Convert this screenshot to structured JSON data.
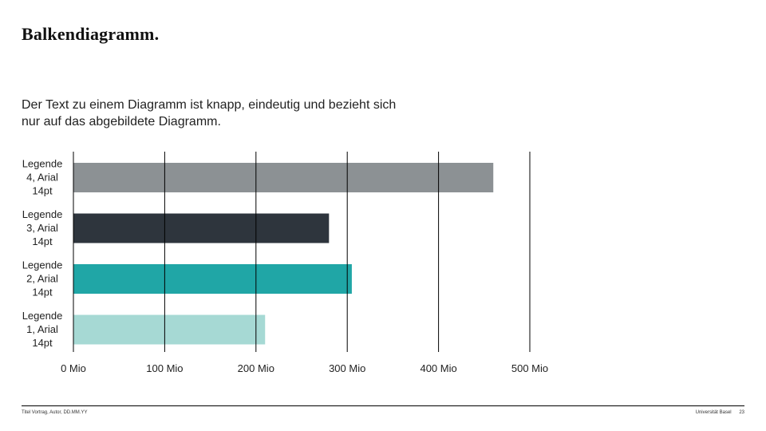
{
  "slide": {
    "title": "Balkendiagramm.",
    "intro_line1": "Der Text zu einem Diagramm ist knapp, eindeutig und bezieht sich",
    "intro_line2": "nur auf das abgebildete Diagramm."
  },
  "footer": {
    "left": "Titel Vortrag, Autor, DD.MM.YY",
    "institution": "Universität Basel",
    "page": "23"
  },
  "chart_data": {
    "type": "bar",
    "orientation": "horizontal",
    "categories": [
      [
        "Legende",
        "4, Arial",
        "14pt"
      ],
      [
        "Legende",
        "3, Arial",
        "14pt"
      ],
      [
        "Legende",
        "2, Arial",
        "14pt"
      ],
      [
        "Legende",
        "1, Arial",
        "14pt"
      ]
    ],
    "values": [
      460,
      280,
      305,
      210
    ],
    "colors": [
      "#8c9194",
      "#2e353d",
      "#20a6a6",
      "#a6d9d4"
    ],
    "xlim": [
      0,
      500
    ],
    "xticks": [
      0,
      100,
      200,
      300,
      400,
      500
    ],
    "tick_labels": [
      "0 Mio",
      "100 Mio",
      "200 Mio",
      "300 Mio",
      "400 Mio",
      "500 Mio"
    ],
    "grid": true
  }
}
